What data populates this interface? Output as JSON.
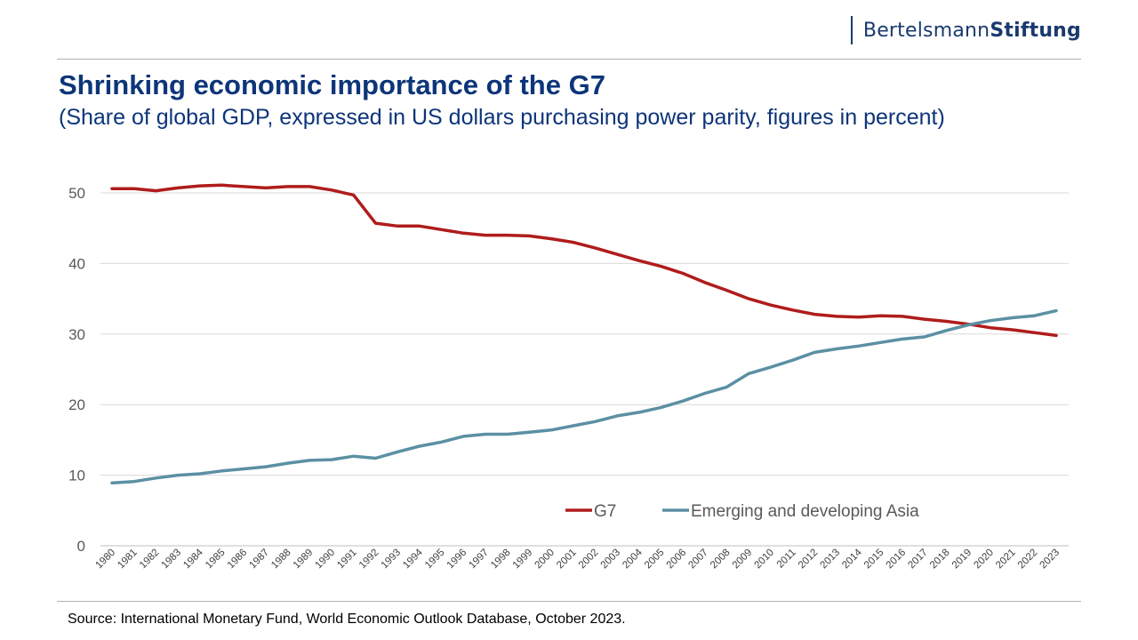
{
  "header": {
    "logo_regular": "Bertelsmann",
    "logo_bold": "Stiftung",
    "title": "Shrinking economic importance of the G7",
    "subtitle": "(Share of global GDP, expressed in US dollars purchasing power parity, figures in percent)"
  },
  "footer": {
    "source": "Source: International Monetary Fund, World Economic Outlook Database, October 2023."
  },
  "chart_data": {
    "type": "line",
    "title": "Shrinking economic importance of the G7",
    "subtitle": "(Share of global GDP, expressed in US dollars purchasing power parity, figures in percent)",
    "xlabel": "",
    "ylabel": "",
    "ylim": [
      0,
      50
    ],
    "yticks": [
      0,
      10,
      20,
      30,
      40,
      50
    ],
    "grid": "horizontal",
    "legend": "bottom-right",
    "x": [
      "1980",
      "1981",
      "1982",
      "1983",
      "1984",
      "1985",
      "1986",
      "1987",
      "1988",
      "1989",
      "1990",
      "1991",
      "1992",
      "1993",
      "1994",
      "1995",
      "1996",
      "1997",
      "1998",
      "1999",
      "2000",
      "2001",
      "2002",
      "2003",
      "2004",
      "2005",
      "2006",
      "2007",
      "2008",
      "2009",
      "2010",
      "2011",
      "2012",
      "2013",
      "2014",
      "2015",
      "2016",
      "2017",
      "2018",
      "2019",
      "2020",
      "2021",
      "2022",
      "2023"
    ],
    "series": [
      {
        "name": "G7",
        "color": "#b01c1c",
        "values": [
          50.6,
          50.6,
          50.3,
          50.7,
          51.0,
          51.1,
          50.9,
          50.7,
          50.9,
          50.9,
          50.4,
          49.7,
          45.7,
          45.3,
          45.3,
          44.8,
          44.3,
          44.0,
          44.0,
          43.9,
          43.5,
          43.0,
          42.2,
          41.3,
          40.4,
          39.6,
          38.6,
          37.3,
          36.2,
          35.0,
          34.1,
          33.4,
          32.8,
          32.5,
          32.4,
          32.6,
          32.5,
          32.1,
          31.8,
          31.4,
          30.9,
          30.6,
          30.2,
          29.8
        ]
      },
      {
        "name": "Emerging and developing Asia",
        "color": "#5b90a3",
        "values": [
          8.9,
          9.1,
          9.6,
          10.0,
          10.2,
          10.6,
          10.9,
          11.2,
          11.7,
          12.1,
          12.2,
          12.7,
          12.4,
          13.3,
          14.1,
          14.7,
          15.5,
          15.8,
          15.8,
          16.1,
          16.4,
          17.0,
          17.6,
          18.4,
          18.9,
          19.6,
          20.5,
          21.6,
          22.5,
          24.4,
          25.3,
          26.3,
          27.4,
          27.9,
          28.3,
          28.8,
          29.3,
          29.6,
          30.5,
          31.3,
          31.9,
          32.3,
          32.6,
          33.3
        ]
      }
    ]
  }
}
